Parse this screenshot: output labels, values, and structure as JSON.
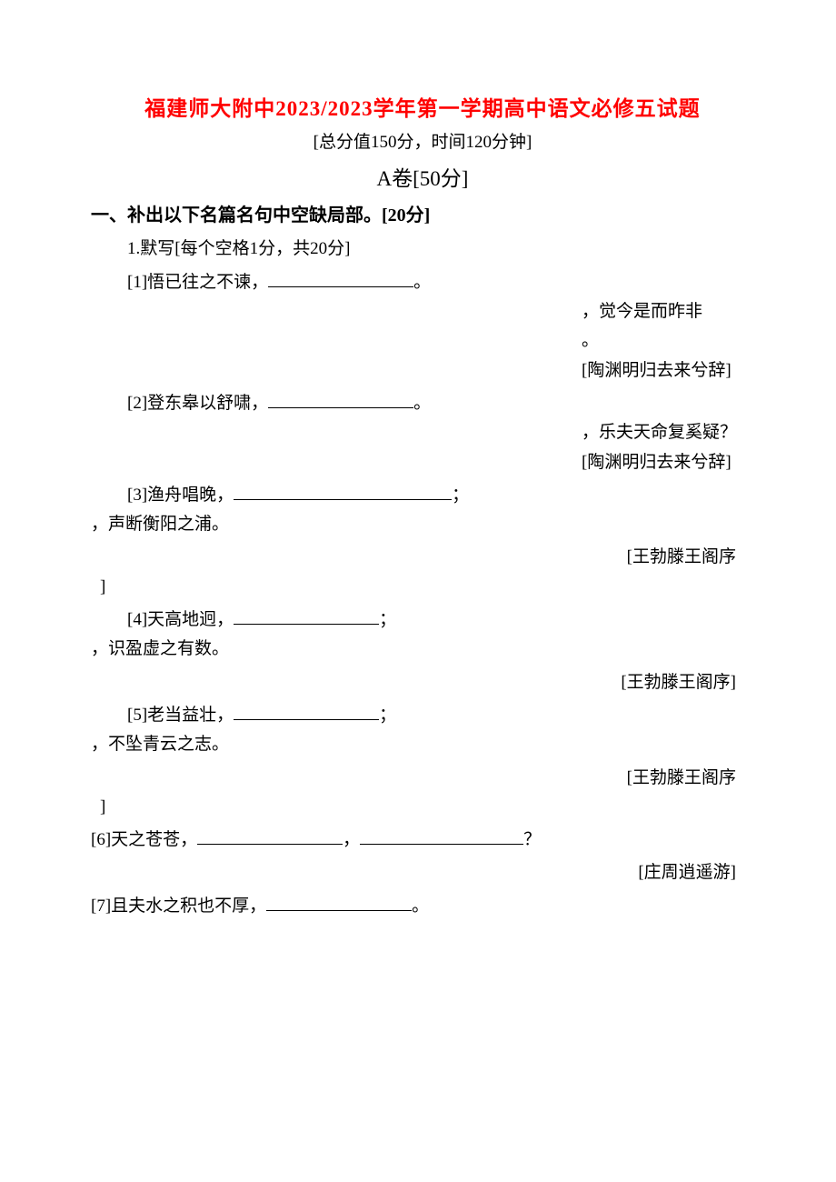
{
  "title": "福建师大附中2023/2023学年第一学期高中语文必修五试题",
  "subtitle": "[总分值150分，时间120分钟]",
  "sectionA": "A卷[50分]",
  "heading1": "一、补出以下名篇名句中空缺局部。[20分]",
  "q1intro": "1.默写[每个空格1分，共20分]",
  "q1_1_a": "[1]悟已往之不谏，",
  "punct_period": "。",
  "punct_semi": "；",
  "punct_comma": "，",
  "punct_q": "？",
  "q1_1_right1": "，觉今是而昨非",
  "q1_1_right2": "。",
  "q1_1_src": "[陶渊明归去来兮辞]",
  "q1_2_a": "[2]登东皋以舒啸，",
  "q1_2_right1": "，乐夫天命复奚疑？",
  "q1_2_src": "[陶渊明归去来兮辞]",
  "q1_3_a": "[3]渔舟唱晚，",
  "q1_3_b": "，声断衡阳之浦。",
  "q1_3_src": "[王勃滕王阁序",
  "bracket_close": "]",
  "q1_4_a": "[4]天高地迥，",
  "q1_4_b": "，识盈虚之有数。",
  "q1_4_src": "[王勃滕王阁序]",
  "q1_5_a": "[5]老当益壮，",
  "q1_5_b": "，不坠青云之志。",
  "q1_5_src": "[王勃滕王阁序",
  "q1_6_a": "[6]天之苍苍，",
  "q1_6_src": "[庄周逍遥游]",
  "q1_7_a": "[7]且夫水之积也不厚，"
}
